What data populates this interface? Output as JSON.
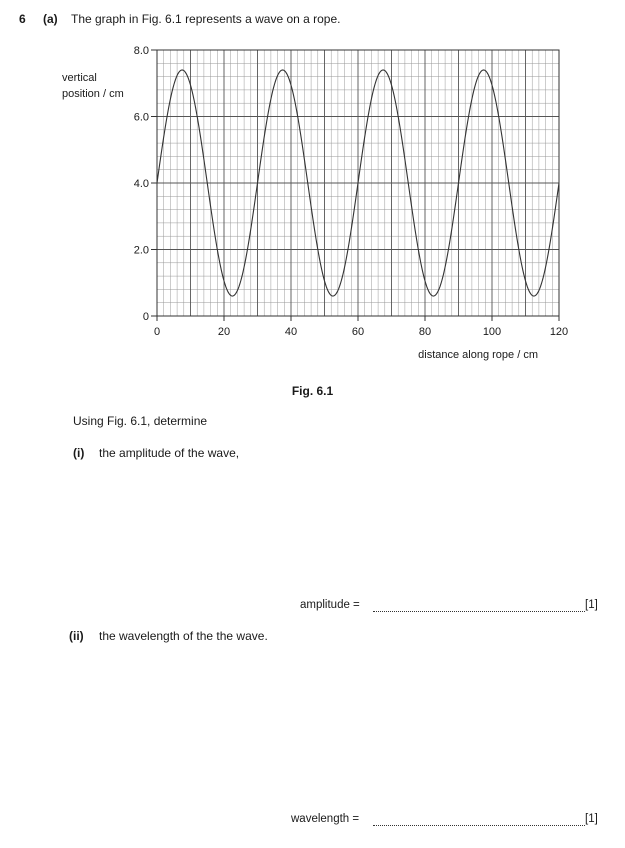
{
  "question": {
    "number": "6",
    "part": "(a)",
    "text": "The graph in Fig. 6.1 represents a wave on a rope."
  },
  "figure": {
    "caption": "Fig. 6.1"
  },
  "instruction": "Using Fig. 6.1, determine",
  "subparts": [
    {
      "label": "(i)",
      "text": "the amplitude of the wave,",
      "answer_label": "amplitude =",
      "marks": "[1]"
    },
    {
      "label": "(ii)",
      "text": "the wavelength of the the wave.",
      "answer_label": "wavelength =",
      "marks": "[1]"
    }
  ],
  "chart_data": {
    "type": "line",
    "xlabel": "distance along rope / cm",
    "ylabel_lines": [
      "vertical",
      "position / cm"
    ],
    "xlim": [
      0,
      120
    ],
    "ylim": [
      0,
      8.0
    ],
    "x_ticks": [
      0,
      20,
      40,
      60,
      80,
      100,
      120
    ],
    "x_tick_labels": [
      "0",
      "20",
      "40",
      "60",
      "80",
      "100",
      "120"
    ],
    "y_ticks": [
      0,
      2.0,
      4.0,
      6.0,
      8.0
    ],
    "y_tick_labels": [
      "0",
      "2.0",
      "4.0",
      "6.0",
      "8.0"
    ],
    "grid": true,
    "grid_minor_step_x": 2,
    "grid_minor_step_y": 0.4,
    "wave": {
      "equilibrium": 4.0,
      "amplitude": 3.4,
      "wavelength": 30,
      "phase_at_origin": "rising",
      "color": "#333333"
    }
  }
}
